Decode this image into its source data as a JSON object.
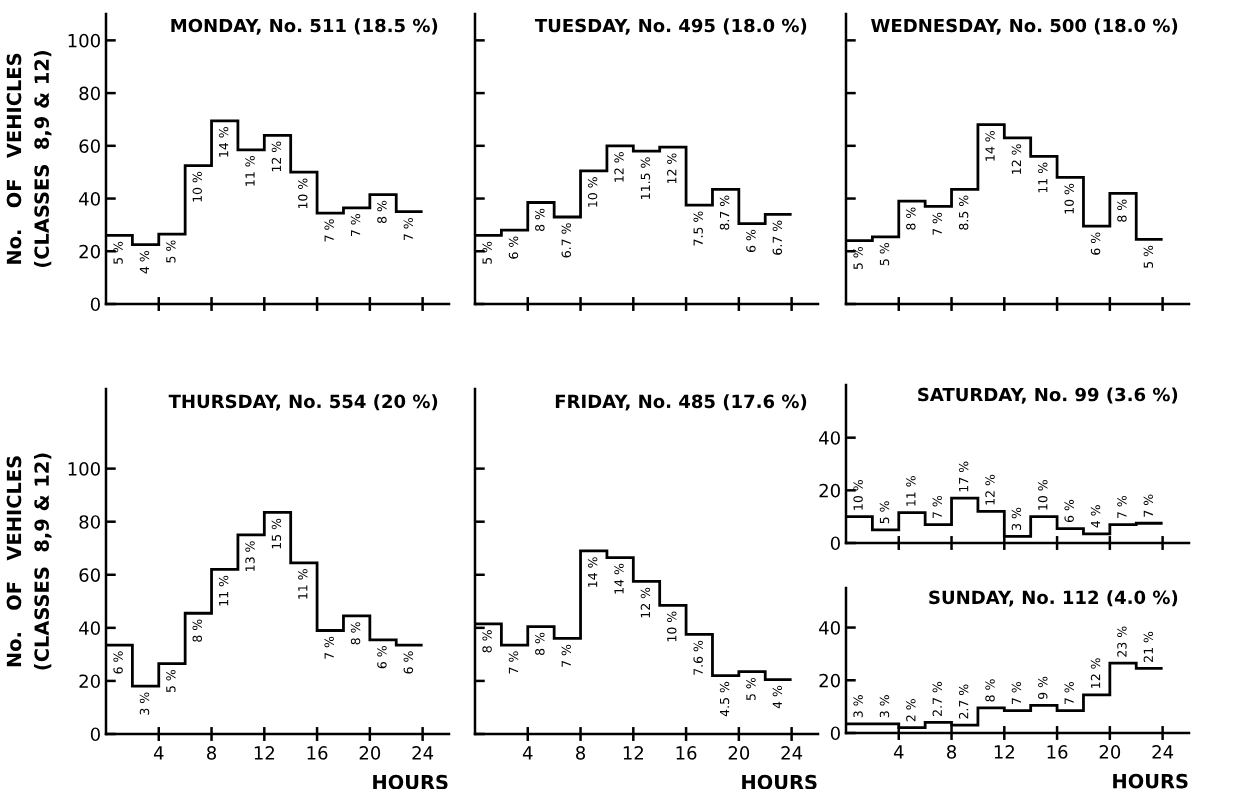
{
  "chart_data": [
    {
      "type": "histogram",
      "title": "MONDAY, No. 511 (18.5 %)",
      "ylabel": "No.   OF   VEHICLES\n(CLASSES  8,9 & 12)",
      "color": "#000000",
      "tick_labels": "y",
      "bins": [
        0,
        2,
        4,
        6,
        8,
        10,
        12,
        14,
        16,
        18,
        20,
        22,
        24
      ],
      "values": [
        26,
        22.5,
        26.5,
        52.5,
        69.5,
        58.5,
        64,
        50,
        34.5,
        36.5,
        41.5,
        35
      ],
      "annotations": [
        {
          "text": "5 %",
          "x": 1,
          "y": 26
        },
        {
          "text": "4 %",
          "x": 3,
          "y": 22.5
        },
        {
          "text": "5 %",
          "x": 5,
          "y": 26.5
        },
        {
          "text": "10 %",
          "x": 7,
          "y": 52.5
        },
        {
          "text": "14 %",
          "x": 9,
          "y": 69.5
        },
        {
          "text": "11 %",
          "x": 11,
          "y": 58.5
        },
        {
          "text": "12 %",
          "x": 13,
          "y": 64
        },
        {
          "text": "10 %",
          "x": 15,
          "y": 50
        },
        {
          "text": "7 %",
          "x": 17,
          "y": 34.5
        },
        {
          "text": "7 %",
          "x": 19,
          "y": 36.5
        },
        {
          "text": "8 %",
          "x": 21,
          "y": 41.5
        },
        {
          "text": "7 %",
          "x": 23,
          "y": 35
        }
      ],
      "xlim": [
        0,
        26
      ],
      "xticks": [
        4,
        8,
        12,
        16,
        20,
        24
      ],
      "ylim": [
        0,
        110
      ],
      "yticks": [
        0,
        20,
        40,
        60,
        80,
        100
      ]
    },
    {
      "type": "histogram",
      "title": "TUESDAY, No. 495 (18.0 %)",
      "color": "#000000",
      "tick_labels": false,
      "bins": [
        0,
        2,
        4,
        6,
        8,
        10,
        12,
        14,
        16,
        18,
        20,
        22,
        24
      ],
      "values": [
        26,
        28,
        38.5,
        33,
        50.5,
        60,
        58,
        59.5,
        37.5,
        43.5,
        30.5,
        34
      ],
      "annotations": [
        {
          "text": "5 %",
          "x": 1,
          "y": 26
        },
        {
          "text": "6 %",
          "x": 3,
          "y": 28
        },
        {
          "text": "8 %",
          "x": 5,
          "y": 38.5
        },
        {
          "text": "6.7 %",
          "x": 7,
          "y": 33
        },
        {
          "text": "10 %",
          "x": 9,
          "y": 50.5
        },
        {
          "text": "12 %",
          "x": 11,
          "y": 60
        },
        {
          "text": "11.5 %",
          "x": 13,
          "y": 58
        },
        {
          "text": "12 %",
          "x": 15,
          "y": 59.5
        },
        {
          "text": "7.5 %",
          "x": 17,
          "y": 37.5
        },
        {
          "text": "8.7 %",
          "x": 19,
          "y": 43.5
        },
        {
          "text": "6 %",
          "x": 21,
          "y": 30.5
        },
        {
          "text": "6.7 %",
          "x": 23,
          "y": 34
        }
      ],
      "xlim": [
        0,
        26
      ],
      "xticks": [
        4,
        8,
        12,
        16,
        20,
        24
      ],
      "ylim": [
        0,
        110
      ],
      "yticks": [
        0,
        20,
        40,
        60,
        80,
        100
      ]
    },
    {
      "type": "histogram",
      "title": "WEDNESDAY, No. 500 (18.0 %)",
      "color": "#000000",
      "tick_labels": false,
      "bins": [
        0,
        2,
        4,
        6,
        8,
        10,
        12,
        14,
        16,
        18,
        20,
        22,
        24
      ],
      "values": [
        24,
        25.5,
        39,
        37,
        43.5,
        68,
        63,
        56,
        48,
        29.5,
        42,
        24.5
      ],
      "annotations": [
        {
          "text": "5 %",
          "x": 1,
          "y": 24
        },
        {
          "text": "5 %",
          "x": 3,
          "y": 25.5
        },
        {
          "text": "8 %",
          "x": 5,
          "y": 39
        },
        {
          "text": "7 %",
          "x": 7,
          "y": 37
        },
        {
          "text": "8.5 %",
          "x": 9,
          "y": 43.5
        },
        {
          "text": "14 %",
          "x": 11,
          "y": 68
        },
        {
          "text": "12 %",
          "x": 13,
          "y": 63
        },
        {
          "text": "11 %",
          "x": 15,
          "y": 56
        },
        {
          "text": "10 %",
          "x": 17,
          "y": 48
        },
        {
          "text": "6 %",
          "x": 19,
          "y": 29.5
        },
        {
          "text": "8 %",
          "x": 21,
          "y": 42
        },
        {
          "text": "5 %",
          "x": 23,
          "y": 24.5
        }
      ],
      "xlim": [
        0,
        26
      ],
      "xticks": [
        4,
        8,
        12,
        16,
        20,
        24
      ],
      "ylim": [
        0,
        110
      ],
      "yticks": [
        0,
        20,
        40,
        60,
        80,
        100
      ]
    },
    {
      "type": "histogram",
      "title": "THURSDAY, No. 554 (20 %)",
      "xlabel": "HOURS",
      "ylabel": "No.   OF   VEHICLES\n(CLASSES  8,9 & 12)",
      "color": "#000000",
      "bins": [
        0,
        2,
        4,
        6,
        8,
        10,
        12,
        14,
        16,
        18,
        20,
        22,
        24
      ],
      "values": [
        33.5,
        18,
        26.5,
        45.5,
        62,
        75,
        83.5,
        64.5,
        39,
        44.5,
        35.5,
        33.5
      ],
      "annotations": [
        {
          "text": "6 %",
          "x": 1,
          "y": 33.5
        },
        {
          "text": "3 %",
          "x": 3,
          "y": 18
        },
        {
          "text": "5 %",
          "x": 5,
          "y": 26.5
        },
        {
          "text": "8 %",
          "x": 7,
          "y": 45.5
        },
        {
          "text": "11 %",
          "x": 9,
          "y": 62
        },
        {
          "text": "13 %",
          "x": 11,
          "y": 75
        },
        {
          "text": "15 %",
          "x": 13,
          "y": 83.5
        },
        {
          "text": "11 %",
          "x": 15,
          "y": 64.5
        },
        {
          "text": "7 %",
          "x": 17,
          "y": 39
        },
        {
          "text": "8 %",
          "x": 19,
          "y": 44.5
        },
        {
          "text": "6 %",
          "x": 21,
          "y": 35.5
        },
        {
          "text": "6 %",
          "x": 23,
          "y": 33.5
        }
      ],
      "xlim": [
        0,
        26
      ],
      "xticks": [
        4,
        8,
        12,
        16,
        20,
        24
      ],
      "ylim": [
        0,
        130
      ],
      "yticks": [
        0,
        20,
        40,
        60,
        80,
        100
      ]
    },
    {
      "type": "histogram",
      "title": "FRIDAY, No. 485 (17.6 %)",
      "xlabel": "HOURS",
      "color": "#000000",
      "tick_labels": "x",
      "bins": [
        0,
        2,
        4,
        6,
        8,
        10,
        12,
        14,
        16,
        18,
        20,
        22,
        24
      ],
      "values": [
        41.5,
        33.5,
        40.5,
        36,
        69,
        66.5,
        57.5,
        48.5,
        37.5,
        22,
        23.5,
        20.5
      ],
      "annotations": [
        {
          "text": "8 %",
          "x": 1,
          "y": 41.5
        },
        {
          "text": "7 %",
          "x": 3,
          "y": 33.5
        },
        {
          "text": "8 %",
          "x": 5,
          "y": 40.5
        },
        {
          "text": "7 %",
          "x": 7,
          "y": 36
        },
        {
          "text": "14 %",
          "x": 9,
          "y": 69
        },
        {
          "text": "14 %",
          "x": 11,
          "y": 66.5
        },
        {
          "text": "12 %",
          "x": 13,
          "y": 57.5
        },
        {
          "text": "10 %",
          "x": 15,
          "y": 48.5
        },
        {
          "text": "7.6 %",
          "x": 17,
          "y": 37.5
        },
        {
          "text": "4.5 %",
          "x": 19,
          "y": 22
        },
        {
          "text": "5 %",
          "x": 21,
          "y": 23.5
        },
        {
          "text": "4 %",
          "x": 23,
          "y": 20.5
        }
      ],
      "xlim": [
        0,
        26
      ],
      "xticks": [
        4,
        8,
        12,
        16,
        20,
        24
      ],
      "ylim": [
        0,
        130
      ],
      "yticks": [
        0,
        20,
        40,
        60,
        80,
        100
      ]
    },
    {
      "type": "histogram",
      "title": "SATURDAY, No. 99 (3.6 %)",
      "color": "#000000",
      "tick_labels": "y",
      "bins": [
        0,
        2,
        4,
        6,
        8,
        10,
        12,
        14,
        16,
        18,
        20,
        22,
        24
      ],
      "values": [
        10,
        5,
        11.5,
        7,
        17,
        12,
        2.5,
        10,
        5.5,
        3.5,
        7,
        7.5
      ],
      "annotations": [
        {
          "text": "10 %",
          "x": 1,
          "y": 10
        },
        {
          "text": "5 %",
          "x": 3,
          "y": 5
        },
        {
          "text": "11 %",
          "x": 5,
          "y": 11.5
        },
        {
          "text": "7 %",
          "x": 7,
          "y": 7
        },
        {
          "text": "17 %",
          "x": 9,
          "y": 17
        },
        {
          "text": "12 %",
          "x": 11,
          "y": 12
        },
        {
          "text": "3 %",
          "x": 13,
          "y": 2.5
        },
        {
          "text": "10 %",
          "x": 15,
          "y": 10
        },
        {
          "text": "6 %",
          "x": 17,
          "y": 5.5
        },
        {
          "text": "4 %",
          "x": 19,
          "y": 3.5
        },
        {
          "text": "7 %",
          "x": 21,
          "y": 7
        },
        {
          "text": "7 %",
          "x": 23,
          "y": 7.5
        }
      ],
      "xlim": [
        0,
        26
      ],
      "xticks": [
        4,
        8,
        12,
        16,
        20,
        24
      ],
      "ylim": [
        0,
        60
      ],
      "yticks": [
        0,
        20,
        40
      ]
    },
    {
      "type": "histogram",
      "title": "SUNDAY, No. 112 (4.0 %)",
      "xlabel": "HOURS",
      "color": "#000000",
      "bins": [
        0,
        2,
        4,
        6,
        8,
        10,
        12,
        14,
        16,
        18,
        20,
        22,
        24
      ],
      "values": [
        3.5,
        3.5,
        2,
        4,
        3,
        9.5,
        8.5,
        10.5,
        8.5,
        14.5,
        26.5,
        24.5
      ],
      "annotations": [
        {
          "text": "3 %",
          "x": 1,
          "y": 3.5
        },
        {
          "text": "3 %",
          "x": 3,
          "y": 3.5
        },
        {
          "text": "2 %",
          "x": 5,
          "y": 2
        },
        {
          "text": "2.7 %",
          "x": 7,
          "y": 4
        },
        {
          "text": "2.7 %",
          "x": 9,
          "y": 3
        },
        {
          "text": "8 %",
          "x": 11,
          "y": 9.5
        },
        {
          "text": "7 %",
          "x": 13,
          "y": 8.5
        },
        {
          "text": "9 %",
          "x": 15,
          "y": 10.5
        },
        {
          "text": "7 %",
          "x": 17,
          "y": 8.5
        },
        {
          "text": "12 %",
          "x": 19,
          "y": 14.5
        },
        {
          "text": "23 %",
          "x": 21,
          "y": 26.5
        },
        {
          "text": "21 %",
          "x": 23,
          "y": 24.5
        }
      ],
      "xlim": [
        0,
        26
      ],
      "xticks": [
        4,
        8,
        12,
        16,
        20,
        24
      ],
      "ylim": [
        0,
        55
      ],
      "yticks": [
        0,
        20,
        40
      ]
    }
  ]
}
